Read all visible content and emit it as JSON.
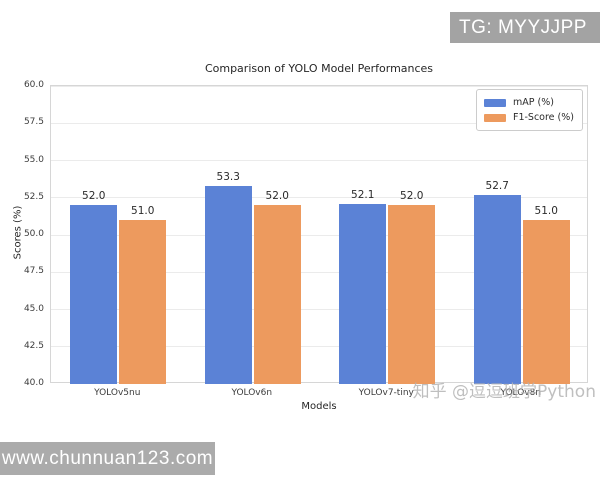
{
  "badges": {
    "top_right": "TG: MYYJJPP",
    "top_right_bg": "#a3a3a3",
    "bottom_left": "www.chunnuan123.com",
    "bottom_left_bg": "#ababab"
  },
  "watermark": "知乎 @逗逗班学Python",
  "chart_data": {
    "type": "bar",
    "title": "Comparison of YOLO Model Performances",
    "xlabel": "Models",
    "ylabel": "Scores (%)",
    "ylim": [
      40.0,
      60.0
    ],
    "ytick_step": 2.5,
    "grid": true,
    "legend_position": "upper right",
    "bar_value_labels": true,
    "categories": [
      "YOLOv5nu",
      "YOLOv6n",
      "YOLOv7-tiny",
      "YOLOv8n"
    ],
    "series": [
      {
        "name": "mAP (%)",
        "color": "#5b82d6",
        "values": [
          52.0,
          53.3,
          52.1,
          52.7
        ]
      },
      {
        "name": "F1-Score (%)",
        "color": "#ed9a5e",
        "values": [
          51.0,
          52.0,
          52.0,
          51.0
        ]
      }
    ]
  }
}
